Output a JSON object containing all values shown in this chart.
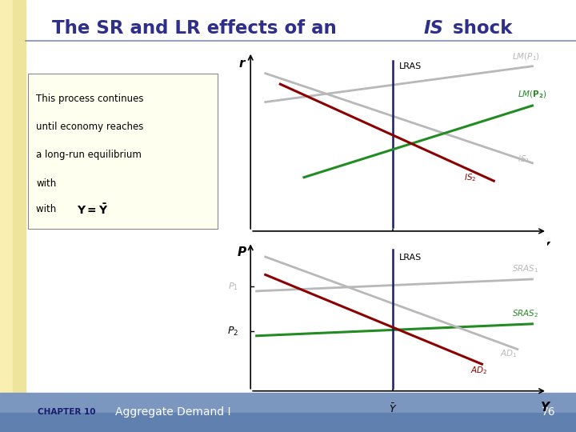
{
  "title_part1": "The SR and LR effects of an ",
  "title_italic": "IS",
  "title_part2": " shock",
  "title_color": "#2E2E8B",
  "bg_color": "#FFFFFF",
  "left_stripe1": "#F5EAA0",
  "left_stripe2": "#EDE08A",
  "footer_bg_top": "#8BA0C8",
  "footer_bg_bot": "#6080B8",
  "footer_chapter": "CHAPTER 10",
  "footer_title": "Aggregate Demand I",
  "footer_page": "76",
  "footer_text_color": "#1A1A6E",
  "textbox_lines": [
    "This process continues",
    "until economy reaches",
    "a long-run equilibrium",
    "with"
  ],
  "textbox_bg": "#FFFFF0",
  "separator_color": "#8090B0",
  "top": {
    "lras_color": "#1A1A6E",
    "lm1_color": "#B8B8B8",
    "lm2_color": "#228B22",
    "is1_color": "#B8B8B8",
    "is2_color": "#8B0000"
  },
  "bot": {
    "lras_color": "#1A1A6E",
    "sras1_color": "#B8B8B8",
    "sras2_color": "#228B22",
    "ad1_color": "#B8B8B8",
    "ad2_color": "#8B0000"
  }
}
